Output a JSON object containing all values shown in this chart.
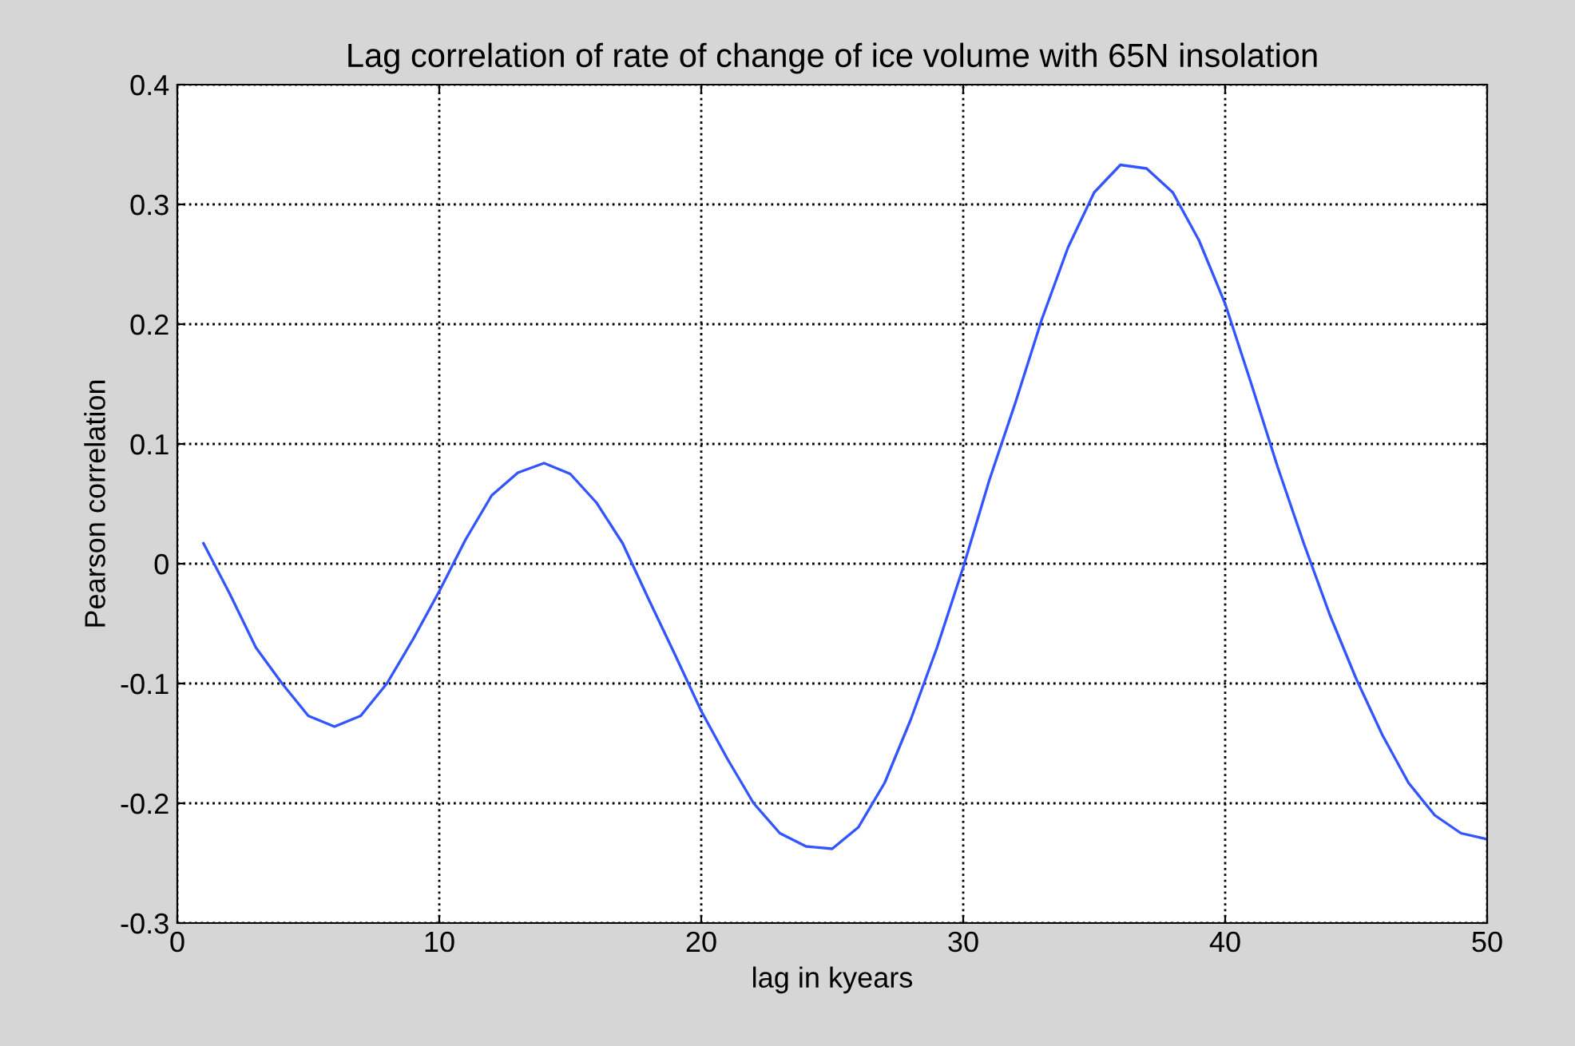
{
  "chart_data": {
    "type": "line",
    "title": "Lag correlation of rate of change of ice volume with 65N insolation",
    "xlabel": "lag in kyears",
    "ylabel": "Pearson correlation",
    "x": [
      1,
      2,
      3,
      4,
      5,
      6,
      7,
      8,
      9,
      10,
      11,
      12,
      13,
      14,
      15,
      16,
      17,
      18,
      19,
      20,
      21,
      22,
      23,
      24,
      25,
      26,
      27,
      28,
      29,
      30,
      31,
      32,
      33,
      34,
      35,
      36,
      37,
      38,
      39,
      40,
      41,
      42,
      43,
      44,
      45,
      46,
      47,
      48,
      49,
      50
    ],
    "series": [
      {
        "color": "#3355ff",
        "values": [
          0.017,
          -0.025,
          -0.07,
          -0.1,
          -0.127,
          -0.136,
          -0.127,
          -0.1,
          -0.063,
          -0.023,
          0.02,
          0.057,
          0.076,
          0.084,
          0.075,
          0.051,
          0.017,
          -0.03,
          -0.076,
          -0.123,
          -0.163,
          -0.2,
          -0.225,
          -0.236,
          -0.238,
          -0.22,
          -0.183,
          -0.13,
          -0.07,
          -0.003,
          0.07,
          0.135,
          0.204,
          0.264,
          0.31,
          0.333,
          0.33,
          0.31,
          0.27,
          0.217,
          0.15,
          0.081,
          0.017,
          -0.043,
          -0.096,
          -0.143,
          -0.183,
          -0.21,
          -0.225,
          -0.23
        ]
      }
    ],
    "xlim": [
      0,
      50
    ],
    "xticks": [
      0,
      10,
      20,
      30,
      40,
      50
    ],
    "ylim": [
      -0.3,
      0.4
    ],
    "yticks": [
      -0.3,
      -0.2,
      -0.1,
      0,
      0.1,
      0.2,
      0.3,
      0.4
    ],
    "grid": true,
    "line_style": "solid"
  }
}
